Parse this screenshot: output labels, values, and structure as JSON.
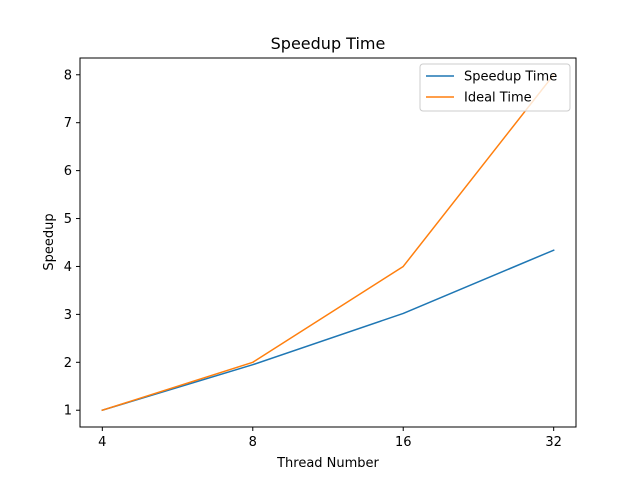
{
  "chart_data": {
    "type": "line",
    "title": "Speedup Time",
    "xlabel": "Thread Number",
    "ylabel": "Speedup",
    "categories": [
      "4",
      "8",
      "16",
      "32"
    ],
    "y_ticks": [
      1,
      2,
      3,
      4,
      5,
      6,
      7,
      8
    ],
    "ylim": [
      0.65,
      8.35
    ],
    "grid": false,
    "legend_position": "top-right",
    "series": [
      {
        "name": "Speedup Time",
        "color": "#1f77b4",
        "values": [
          1.0,
          1.95,
          3.02,
          4.34
        ]
      },
      {
        "name": "Ideal Time",
        "color": "#ff7f0e",
        "values": [
          1.0,
          2.0,
          4.0,
          8.0
        ]
      }
    ]
  }
}
